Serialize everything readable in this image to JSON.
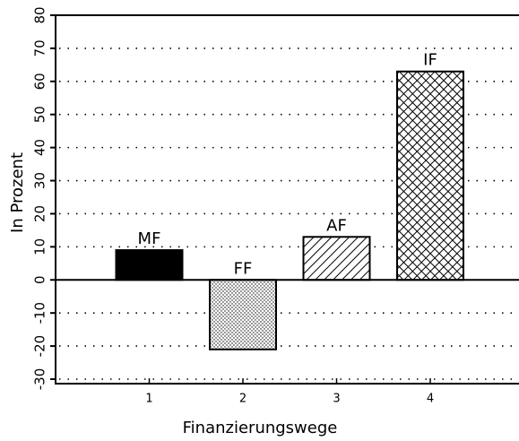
{
  "chart_data": {
    "type": "bar",
    "categories": [
      "1",
      "2",
      "3",
      "4"
    ],
    "values": [
      9,
      -21,
      13,
      63
    ],
    "annotations": [
      "MF",
      "FF",
      "AF",
      "IF"
    ],
    "xlabel": "Finanzierungswege",
    "ylabel": "In Prozent",
    "ylim": [
      -30,
      80
    ],
    "yticks": [
      -30,
      -20,
      -10,
      0,
      10,
      20,
      30,
      40,
      50,
      60,
      70,
      80
    ],
    "grid": true
  }
}
